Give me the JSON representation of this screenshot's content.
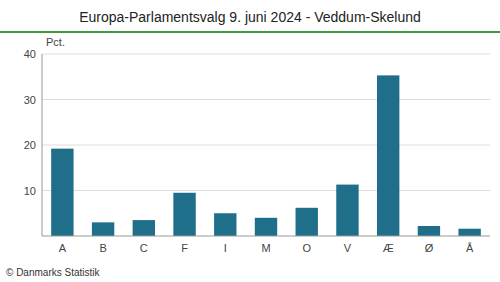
{
  "chart_data": {
    "type": "bar",
    "title": "Europa-Parlamentsvalg 9. juni 2024 - Veddum-Skelund",
    "categories": [
      "A",
      "B",
      "C",
      "F",
      "I",
      "M",
      "O",
      "V",
      "Æ",
      "Ø",
      "Å"
    ],
    "values": [
      19.2,
      3.0,
      3.5,
      9.5,
      5.0,
      4.0,
      6.2,
      11.3,
      35.3,
      2.2,
      1.6
    ],
    "color": "#1f6f8b",
    "ylabel": "Pct.",
    "ylim": [
      0,
      40
    ],
    "yticks": [
      10,
      20,
      30,
      40
    ],
    "grid": true,
    "footer": "© Danmarks Statistik"
  }
}
